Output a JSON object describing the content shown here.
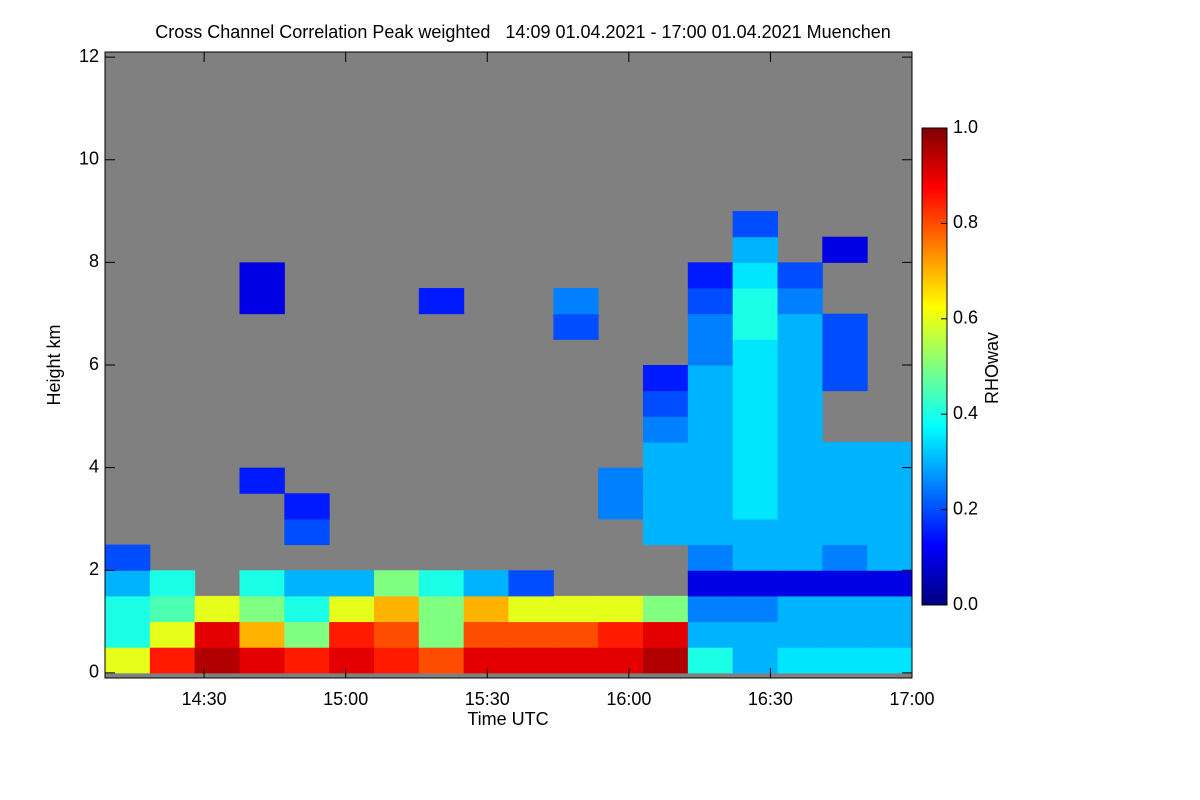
{
  "chart_data": {
    "type": "heatmap",
    "title": "Cross Channel Correlation Peak weighted   14:09 01.04.2021 - 17:00 01.04.2021 Muenchen",
    "xlabel": "Time UTC",
    "ylabel": "Height km",
    "colorbar_label": "RHOwav",
    "xlim": [
      849,
      1020
    ],
    "xticks": [
      {
        "value": 870,
        "label": "14:30"
      },
      {
        "value": 900,
        "label": "15:00"
      },
      {
        "value": 930,
        "label": "15:30"
      },
      {
        "value": 960,
        "label": "16:00"
      },
      {
        "value": 990,
        "label": "16:30"
      },
      {
        "value": 1020,
        "label": "17:00"
      }
    ],
    "ylim": [
      -0.1,
      12.1
    ],
    "yticks": [
      0,
      2,
      4,
      6,
      8,
      10,
      12
    ],
    "clim": [
      0,
      1
    ],
    "cticks": [
      {
        "value": 0,
        "label": "0.0"
      },
      {
        "value": 0.2,
        "label": "0.2"
      },
      {
        "value": 0.4,
        "label": "0.4"
      },
      {
        "value": 0.6,
        "label": "0.6"
      },
      {
        "value": 0.8,
        "label": "0.8"
      },
      {
        "value": 1,
        "label": "1.0"
      }
    ],
    "colorscale": [
      "#00007f",
      "#0000ff",
      "#0080ff",
      "#00ffff",
      "#80ff80",
      "#ffff00",
      "#ff8000",
      "#ff0000",
      "#7f0000"
    ],
    "missing_color": "#808080",
    "x_edges": [
      849,
      858.5,
      868,
      877.5,
      887,
      896.5,
      906,
      915.5,
      925,
      934.5,
      944,
      953.5,
      963,
      972.5,
      982,
      991.5,
      1001,
      1010.5,
      1020
    ],
    "y_edges": [
      0,
      0.5,
      1,
      1.5,
      2,
      2.5,
      3,
      3.5,
      4,
      4.5,
      5,
      5.5,
      6,
      6.5,
      7,
      7.5,
      8,
      8.5,
      9
    ],
    "z": [
      [
        0.6,
        0.85,
        0.95,
        0.9,
        0.85,
        0.9,
        0.85,
        0.8,
        0.9,
        0.9,
        0.9,
        0.9,
        0.95,
        0.4,
        0.3,
        0.35,
        0.35,
        0.35
      ],
      [
        0.4,
        0.6,
        0.9,
        0.7,
        0.5,
        0.85,
        0.8,
        0.5,
        0.8,
        0.8,
        0.8,
        0.85,
        0.9,
        0.3,
        0.3,
        0.3,
        0.3,
        0.3
      ],
      [
        0.4,
        0.45,
        0.6,
        0.5,
        0.4,
        0.6,
        0.7,
        0.5,
        0.7,
        0.6,
        0.6,
        0.6,
        0.5,
        0.25,
        0.25,
        0.3,
        0.3,
        0.3
      ],
      [
        0.3,
        0.4,
        null,
        0.4,
        0.3,
        0.3,
        0.5,
        0.4,
        0.3,
        0.2,
        null,
        null,
        null,
        0.1,
        0.1,
        0.1,
        0.1,
        0.1
      ],
      [
        0.2,
        null,
        null,
        null,
        null,
        null,
        null,
        null,
        null,
        null,
        null,
        null,
        null,
        0.25,
        0.3,
        0.3,
        0.25,
        0.3
      ],
      [
        null,
        null,
        null,
        null,
        0.2,
        null,
        null,
        null,
        null,
        null,
        null,
        null,
        0.3,
        0.3,
        0.3,
        0.3,
        0.3,
        0.3
      ],
      [
        null,
        null,
        null,
        null,
        0.15,
        null,
        null,
        null,
        null,
        null,
        null,
        0.25,
        0.3,
        0.3,
        0.35,
        0.3,
        0.3,
        0.3
      ],
      [
        null,
        null,
        null,
        0.15,
        null,
        null,
        null,
        null,
        null,
        null,
        null,
        0.25,
        0.3,
        0.3,
        0.35,
        0.3,
        0.3,
        0.3
      ],
      [
        null,
        null,
        null,
        null,
        null,
        null,
        null,
        null,
        null,
        null,
        null,
        null,
        0.3,
        0.3,
        0.35,
        0.3,
        0.3,
        0.3
      ],
      [
        null,
        null,
        null,
        null,
        null,
        null,
        null,
        null,
        null,
        null,
        null,
        null,
        0.25,
        0.3,
        0.35,
        0.3,
        null,
        null
      ],
      [
        null,
        null,
        null,
        null,
        null,
        null,
        null,
        null,
        null,
        null,
        null,
        null,
        0.2,
        0.3,
        0.35,
        0.3,
        null,
        null
      ],
      [
        null,
        null,
        null,
        null,
        null,
        null,
        null,
        null,
        null,
        null,
        null,
        null,
        0.15,
        0.3,
        0.35,
        0.3,
        0.2,
        null
      ],
      [
        null,
        null,
        null,
        null,
        null,
        null,
        null,
        null,
        null,
        null,
        null,
        null,
        null,
        0.25,
        0.35,
        0.3,
        0.2,
        null
      ],
      [
        null,
        null,
        null,
        null,
        null,
        null,
        null,
        null,
        null,
        null,
        0.2,
        null,
        null,
        0.25,
        0.4,
        0.3,
        0.2,
        null
      ],
      [
        null,
        null,
        null,
        0.1,
        null,
        null,
        null,
        0.15,
        null,
        null,
        0.25,
        null,
        null,
        0.2,
        0.4,
        0.25,
        null,
        null
      ],
      [
        null,
        null,
        null,
        0.1,
        null,
        null,
        null,
        null,
        null,
        null,
        null,
        null,
        null,
        0.15,
        0.35,
        0.2,
        null,
        null
      ],
      [
        null,
        null,
        null,
        null,
        null,
        null,
        null,
        null,
        null,
        null,
        null,
        null,
        null,
        null,
        0.3,
        null,
        0.1,
        null
      ],
      [
        null,
        null,
        null,
        null,
        null,
        null,
        null,
        null,
        null,
        null,
        null,
        null,
        null,
        null,
        0.2,
        null,
        null,
        null
      ]
    ]
  }
}
